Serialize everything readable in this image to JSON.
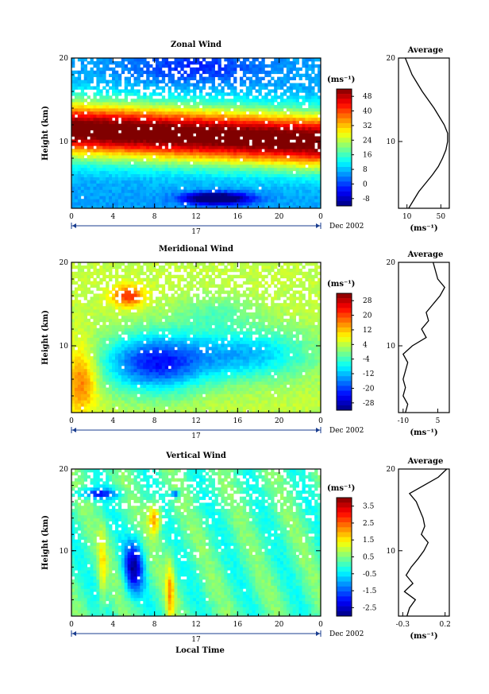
{
  "chart_data": [
    {
      "id": "zonal",
      "type": "heatmap",
      "title": "Zonal Wind",
      "ylabel": "Height (km)",
      "xlabel": "",
      "xlim": [
        0,
        24
      ],
      "ylim": [
        2,
        20
      ],
      "x_ticks": [
        "0",
        "4",
        "8",
        "12",
        "16",
        "20",
        "0"
      ],
      "y_ticks": [
        "20",
        "10"
      ],
      "colorbar": {
        "unit": "(ms⁻¹)",
        "labels": [
          "48",
          "40",
          "32",
          "24",
          "16",
          "8",
          "0",
          "-8"
        ],
        "range": [
          -12,
          52
        ]
      },
      "date_bar": {
        "day": "17",
        "month_year": "Dec 2002"
      },
      "average": {
        "title": "Average",
        "x_ticks": [
          "10",
          "50"
        ],
        "xlabel": "(ms⁻¹)",
        "y_ticks": [
          "20",
          "10"
        ],
        "xlim": [
          0,
          60
        ],
        "heights": [
          2,
          3,
          4,
          5,
          6,
          7,
          8,
          9,
          10,
          11,
          12,
          13,
          14,
          15,
          16,
          17,
          18,
          19,
          20
        ],
        "values": [
          12,
          18,
          24,
          32,
          40,
          47,
          52,
          56,
          58,
          58,
          54,
          48,
          42,
          35,
          28,
          22,
          16,
          12,
          8
        ]
      }
    },
    {
      "id": "meridional",
      "type": "heatmap",
      "title": "Meridional Wind",
      "ylabel": "Height (km)",
      "xlabel": "",
      "xlim": [
        0,
        24
      ],
      "ylim": [
        2,
        20
      ],
      "x_ticks": [
        "0",
        "4",
        "8",
        "12",
        "16",
        "20",
        "0"
      ],
      "y_ticks": [
        "20",
        "10"
      ],
      "colorbar": {
        "unit": "(ms⁻¹)",
        "labels": [
          "28",
          "20",
          "12",
          "4",
          "-4",
          "-12",
          "-20",
          "-28"
        ],
        "range": [
          -32,
          32
        ]
      },
      "date_bar": {
        "day": "17",
        "month_year": "Dec 2002"
      },
      "average": {
        "title": "Average",
        "x_ticks": [
          "-10",
          "5"
        ],
        "xlabel": "(ms⁻¹)",
        "y_ticks": [
          "20",
          "10"
        ],
        "xlim": [
          -12,
          10
        ],
        "heights": [
          2,
          3,
          4,
          5,
          6,
          7,
          8,
          9,
          10,
          11,
          12,
          13,
          14,
          15,
          16,
          17,
          18,
          19,
          20
        ],
        "values": [
          -9,
          -8,
          -10,
          -9,
          -10,
          -9,
          -8,
          -10,
          -6,
          0,
          -2,
          1,
          0,
          3,
          6,
          8,
          5,
          4,
          3
        ]
      }
    },
    {
      "id": "vertical",
      "type": "heatmap",
      "title": "Vertical Wind",
      "ylabel": "Height (km)",
      "xlabel": "Local Time",
      "xlim": [
        0,
        24
      ],
      "ylim": [
        2,
        20
      ],
      "x_ticks": [
        "0",
        "4",
        "8",
        "12",
        "16",
        "20",
        "0"
      ],
      "y_ticks": [
        "20",
        "10"
      ],
      "colorbar": {
        "unit": "(ms⁻¹)",
        "labels": [
          "3.5",
          "2.5",
          "1.5",
          "0.5",
          "-0.5",
          "-1.5",
          "-2.5"
        ],
        "range": [
          -4,
          4
        ]
      },
      "date_bar": {
        "day": "17",
        "month_year": "Dec 2002"
      },
      "average": {
        "title": "Average",
        "x_ticks": [
          "-0.3",
          "0.2"
        ],
        "xlabel": "(ms⁻¹)",
        "y_ticks": [
          "20",
          "10"
        ],
        "xlim": [
          -0.35,
          0.25
        ],
        "heights": [
          2,
          3,
          4,
          5,
          6,
          7,
          8,
          9,
          10,
          11,
          12,
          13,
          14,
          15,
          16,
          17,
          18,
          19,
          20
        ],
        "values": [
          -0.25,
          -0.22,
          -0.15,
          -0.28,
          -0.18,
          -0.26,
          -0.2,
          -0.12,
          -0.05,
          0.0,
          -0.08,
          -0.04,
          -0.06,
          -0.1,
          -0.14,
          -0.22,
          -0.05,
          0.12,
          0.22
        ]
      }
    }
  ]
}
